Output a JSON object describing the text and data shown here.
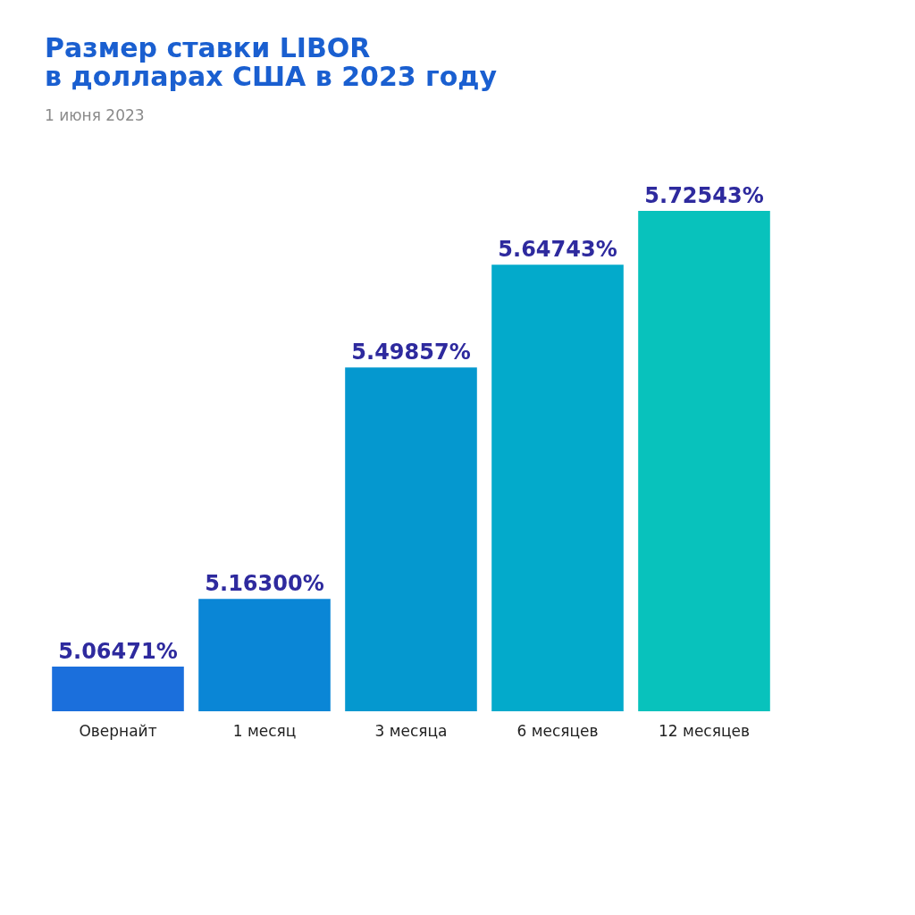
{
  "chart_data": {
    "type": "bar",
    "title": [
      "Размер ставки LIBOR",
      "в долларах США в 2023 году"
    ],
    "subtitle": "1 июня 2023",
    "categories": [
      "Овернайт",
      "1 месяц",
      "3 месяца",
      "6 месяцев",
      "12 месяцев"
    ],
    "values": [
      5.06471,
      5.163,
      5.49857,
      5.64743,
      5.72543
    ],
    "value_labels": [
      "5.06471%",
      "5.16300%",
      "5.49857%",
      "5.64743%",
      "5.72543%"
    ],
    "colors": [
      "#1b6fdc",
      "#0a86d6",
      "#0598cf",
      "#03aacb",
      "#08c2bc"
    ],
    "ylim": [
      5.0,
      5.72543
    ],
    "tick_labels": "x",
    "grid": false
  }
}
